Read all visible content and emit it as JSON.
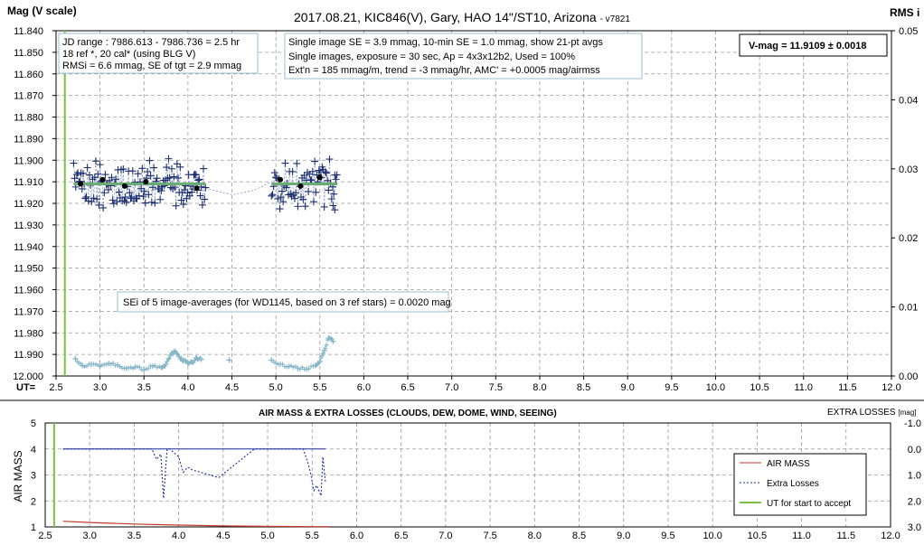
{
  "chart_data": [
    {
      "type": "scatter",
      "title": "2017.08.21,  KIC846(V),  Gary,  HAO  14\"/ST10,  Arizona",
      "title_suffix": "- v7821",
      "ylabel": "Mag (V scale)",
      "y2label": "RMS i",
      "xlabel": "UT=",
      "xlim": [
        2.5,
        12.0
      ],
      "ylim": [
        11.84,
        12.0
      ],
      "y_inverted": true,
      "y2lim": [
        0.0,
        0.05
      ],
      "x_ticks": [
        "2.5",
        "3.0",
        "3.5",
        "4.0",
        "4.5",
        "5.0",
        "5.5",
        "6.0",
        "6.5",
        "7.0",
        "7.5",
        "8.0",
        "8.5",
        "9.0",
        "9.5",
        "10.0",
        "10.5",
        "11.0",
        "11.5",
        "12.0"
      ],
      "y_ticks": [
        "11.840",
        "11.850",
        "11.860",
        "11.870",
        "11.880",
        "11.890",
        "11.900",
        "11.910",
        "11.920",
        "11.930",
        "11.940",
        "11.950",
        "11.960",
        "11.970",
        "11.980",
        "11.990",
        "12.000"
      ],
      "y2_ticks": [
        "0.05",
        "0.04",
        "0.03",
        "0.02",
        "0.01",
        "0.00"
      ],
      "grid": true,
      "annotations": {
        "box1": [
          "JD range : 7986.613 - 7986.736 =  2.5 hr",
          "18 ref *, 20 cal* (using BLG V)",
          "RMSi = 6.6 mmag, SE of tgt = 2.9 mmag"
        ],
        "box2": [
          "Single image SE = 3.9 mmag, 10-min SE = 1.0 mmag, show 21-pt avgs",
          "Single images, exposure = 30 sec, Ap = 4x3x12b2, Used = 100%",
          "Ext'n = 185 mmag/m, trend = -3 mmag/hr, AMC' = +0.0005 mag/airmss"
        ],
        "vmag": "V-mag = 11.9109 ± 0.0018",
        "sei": "SEi of 5 image-averages (for WD1145, based on 3 ref stars) = 0.0020 mag"
      },
      "start_ut": 2.6,
      "fit_mag": 11.911,
      "segments": [
        [
          2.7,
          4.2
        ],
        [
          4.95,
          5.7
        ]
      ],
      "averages": [
        {
          "x": 2.78,
          "y": 11.911
        },
        {
          "x": 3.03,
          "y": 11.909
        },
        {
          "x": 3.28,
          "y": 11.912
        },
        {
          "x": 3.52,
          "y": 11.91
        },
        {
          "x": 4.1,
          "y": 11.913
        },
        {
          "x": 5.05,
          "y": 11.909
        },
        {
          "x": 5.28,
          "y": 11.912
        },
        {
          "x": 5.5,
          "y": 11.908
        }
      ],
      "rms_points": [
        {
          "x": 2.72,
          "y": 0.0025
        },
        {
          "x": 2.8,
          "y": 0.0015
        },
        {
          "x": 2.9,
          "y": 0.0017
        },
        {
          "x": 3.0,
          "y": 0.0014
        },
        {
          "x": 3.1,
          "y": 0.0018
        },
        {
          "x": 3.2,
          "y": 0.0016
        },
        {
          "x": 3.3,
          "y": 0.0011
        },
        {
          "x": 3.4,
          "y": 0.0013
        },
        {
          "x": 3.5,
          "y": 0.0009
        },
        {
          "x": 3.6,
          "y": 0.0014
        },
        {
          "x": 3.7,
          "y": 0.0012
        },
        {
          "x": 3.75,
          "y": 0.0017
        },
        {
          "x": 3.8,
          "y": 0.003
        },
        {
          "x": 3.85,
          "y": 0.0036
        },
        {
          "x": 3.9,
          "y": 0.0028
        },
        {
          "x": 3.95,
          "y": 0.0022
        },
        {
          "x": 4.0,
          "y": 0.0018
        },
        {
          "x": 4.05,
          "y": 0.002
        },
        {
          "x": 4.1,
          "y": 0.0026
        },
        {
          "x": 4.15,
          "y": 0.0024
        },
        {
          "x": 4.47,
          "y": 0.0023
        },
        {
          "x": 4.95,
          "y": 0.0023
        },
        {
          "x": 5.05,
          "y": 0.0017
        },
        {
          "x": 5.15,
          "y": 0.0014
        },
        {
          "x": 5.25,
          "y": 0.0011
        },
        {
          "x": 5.35,
          "y": 0.001
        },
        {
          "x": 5.45,
          "y": 0.0015
        },
        {
          "x": 5.5,
          "y": 0.0021
        },
        {
          "x": 5.55,
          "y": 0.0037
        },
        {
          "x": 5.6,
          "y": 0.0055
        },
        {
          "x": 5.65,
          "y": 0.005
        }
      ]
    },
    {
      "type": "line",
      "title": "AIR MASS & EXTRA LOSSES (CLOUDS, DEW, DOME, WIND, SEEING)",
      "ylabel": "AIR MASS",
      "y2label": "EXTRA LOSSES",
      "y2unit": "[mag]",
      "xlim": [
        2.5,
        12.0
      ],
      "ylim": [
        1,
        5
      ],
      "y2lim": [
        -1.0,
        3.0
      ],
      "y2_inverted": true,
      "x_ticks": [
        "2.5",
        "3.0",
        "3.5",
        "4.0",
        "4.5",
        "5.0",
        "5.5",
        "6.0",
        "6.5",
        "7.0",
        "7.5",
        "8.0",
        "8.5",
        "9.0",
        "9.5",
        "10.0",
        "10.5",
        "11.0",
        "11.5",
        "12.0"
      ],
      "y_ticks": [
        "5",
        "4",
        "3",
        "2",
        "1"
      ],
      "y2_ticks": [
        "-1.0",
        "0.0",
        "1.0",
        "2.0",
        "3.0"
      ],
      "grid": true,
      "legend_position": "right",
      "series": [
        {
          "name": "AIR MASS",
          "color": "#c0392b",
          "x": [
            2.7,
            3.0,
            3.5,
            4.0,
            4.5,
            5.0,
            5.5,
            5.7
          ],
          "y": [
            1.22,
            1.17,
            1.11,
            1.07,
            1.04,
            1.02,
            1.01,
            1.01
          ]
        },
        {
          "name": "Extra Losses",
          "color": "#1f2f9f",
          "x": [
            2.7,
            3.5,
            3.7,
            3.75,
            3.8,
            3.83,
            3.87,
            3.9,
            4.0,
            4.05,
            4.1,
            4.15,
            4.45,
            4.85,
            4.95,
            5.4,
            5.45,
            5.48,
            5.52,
            5.55,
            5.6,
            5.62,
            5.65
          ],
          "y": [
            0.0,
            0.0,
            0.0,
            0.4,
            0.2,
            1.9,
            0.0,
            0.0,
            0.3,
            0.9,
            0.7,
            0.8,
            1.1,
            0.0,
            0.0,
            0.0,
            0.5,
            0.9,
            1.6,
            1.4,
            1.8,
            0.3,
            1.3
          ]
        },
        {
          "name": "UT for start to accept",
          "color": "#7cc242",
          "x": [
            2.6
          ],
          "y": [
            0
          ]
        }
      ]
    }
  ]
}
